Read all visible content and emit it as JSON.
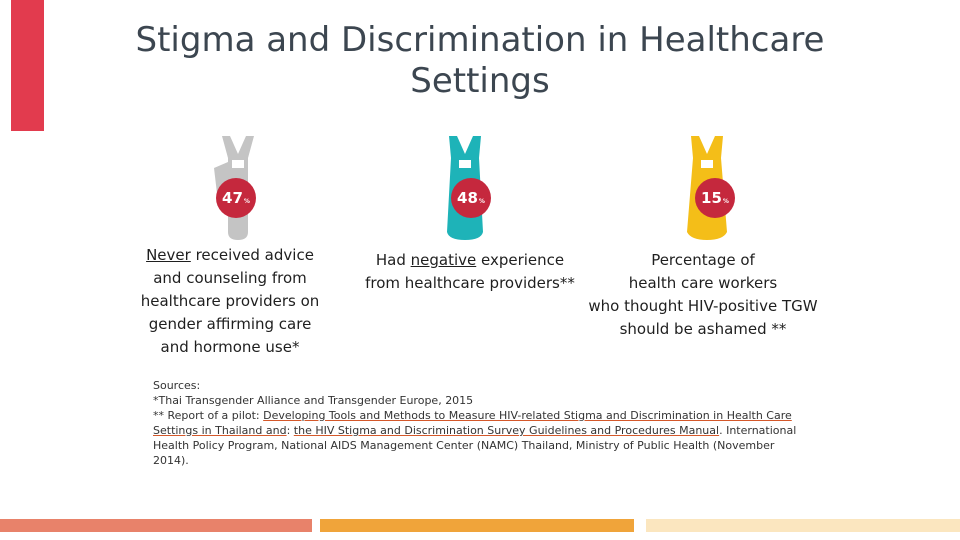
{
  "title": {
    "line1": "Stigma and Discrimination in Healthcare",
    "line2": "Settings"
  },
  "colors": {
    "accent_red": "#e23b4e",
    "figure_gray": "#c4c4c4",
    "figure_teal": "#1eb3b8",
    "figure_yellow": "#f4be18",
    "badge_red": "#c5283d",
    "footer_salmon": "#e8826a",
    "footer_orange": "#f0a43a",
    "footer_cream": "#fbe6bf"
  },
  "stats": [
    {
      "value": "47",
      "unit": "%",
      "icon": "gray-person-icon",
      "caption_lead": "Never",
      "caption_line1_rest": " received advice",
      "caption_line2": "and counseling from",
      "caption_line3": "healthcare providers on",
      "caption_line4": "gender affirming care",
      "caption_line5": "and hormone use*"
    },
    {
      "value": "48",
      "unit": "%",
      "icon": "teal-person-icon",
      "caption_line1_a": "Had ",
      "caption_line1_u": "negative",
      "caption_line1_b": " experience",
      "caption_line2": "from healthcare providers**"
    },
    {
      "value": "15",
      "unit": "%",
      "icon": "yellow-person-icon",
      "caption_line1": "Percentage of",
      "caption_line2": "health care workers",
      "caption_line3": "who thought HIV-positive TGW",
      "caption_line4": "should be ashamed **"
    }
  ],
  "sources": {
    "heading": "Sources:",
    "line1": "*Thai Transgender Alliance and Transgender Europe, 2015",
    "line2_prefix": "** Report of a pilot: ",
    "link1": "Developing Tools and Methods to Measure HIV-related Stigma and Discrimination in Health Care Settings in Thailand and",
    "sep": ": ",
    "link2": "the HIV Stigma and Discrimination Survey Guidelines and Procedures Manual",
    "line2_suffix": ". International Health Policy Program, National AIDS Management Center (NAMC) Thailand, Ministry of Public Health (November 2014)."
  }
}
